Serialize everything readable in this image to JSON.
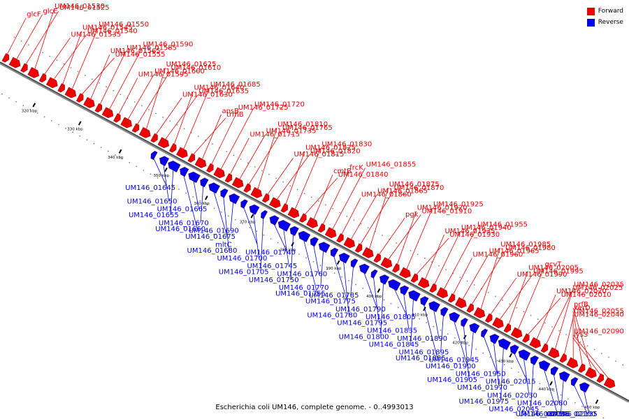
{
  "colors": {
    "forward": "#ee0000",
    "reverse": "#0000ee",
    "axis": "#888888",
    "tick": "#000000"
  },
  "legend": [
    {
      "label": "Forward",
      "color": "#ee0000"
    },
    {
      "label": "Reverse",
      "color": "#0000ee"
    }
  ],
  "caption": "Escherichia coli UM146, complete genome. - 0..4993013",
  "ticks": [
    "320 kbp",
    "330 kbp",
    "340 kbp",
    "350 kbp",
    "360 kbp",
    "370 kbp",
    "380 kbp",
    "390 kbp",
    "400 kbp",
    "410 kbp",
    "420 kbp",
    "430 kbp",
    "440 kbp",
    "450 kbp"
  ],
  "forward_labels": [
    "glcF",
    "glcE",
    "UM146_01525",
    "UM146_01530",
    "UM146_01535",
    "UM146_01540",
    "UM146_01545",
    "UM146_01550",
    "UM146_01555",
    "UM146_01565",
    "UM146_01585",
    "UM146_01590",
    "UM146_01595",
    "UM146_01600",
    "UM146_01610",
    "UM146_01625",
    "UM146_01630",
    "UM146_01635",
    "UM146_01640",
    "UM146_01685",
    "trmB",
    "ansB",
    "UM146_01725",
    "UM146_01720",
    "UM146_01715",
    "UM146_01735",
    "UM146_01765",
    "UM146_01810",
    "UM146_01815",
    "UM146_01820",
    "UM146_01825",
    "UM146_01830",
    "UM146_01840",
    "cmtB",
    "frcK",
    "UM146_01855",
    "UM146_01860",
    "UM146_01865",
    "UM146_01870",
    "UM146_01875",
    "pgk",
    "UM146_01910",
    "UM146_01920",
    "UM146_01925",
    "UM146_01930",
    "UM146_01935",
    "UM146_01940",
    "UM146_01955",
    "UM146_01960",
    "UM146_01965",
    "UM146_01980",
    "UM146_01985",
    "UM146_01990",
    "UM146_01995",
    "UM146_02005",
    "gcvT",
    "UM146_02010",
    "UM146_02020",
    "UM146_02025",
    "UM146_02035",
    "UM146_02040",
    "UM146_02055",
    "xerD",
    "prfB",
    "lysS",
    "UM146_02090"
  ],
  "reverse_labels": [
    "UM146_01645",
    "UM146_01650",
    "UM146_01655",
    "UM146_01660",
    "UM146_01665",
    "UM146_01670",
    "UM146_01675",
    "UM146_01680",
    "UM146_01690",
    "mltC",
    "UM146_01700",
    "UM146_01705",
    "UM146_01740",
    "UM146_01745",
    "UM146_01750",
    "UM146_01755",
    "UM146_01760",
    "UM146_01770",
    "UM146_01775",
    "UM146_01780",
    "UM146_01785",
    "UM146_01790",
    "UM146_01795",
    "UM146_01800",
    "UM146_01805",
    "UM146_01835",
    "UM146_01845",
    "UM146_01885",
    "UM146_01890",
    "UM146_01895",
    "UM146_01900",
    "UM146_01905",
    "UM146_01945",
    "UM146_01950",
    "UM146_01970",
    "UM146_01975",
    "UM146_02015",
    "UM146_02030",
    "UM146_02045",
    "UM146_02075",
    "UM146_02080",
    "UM146_02085",
    "UM146_02100",
    "UM146_02135"
  ]
}
